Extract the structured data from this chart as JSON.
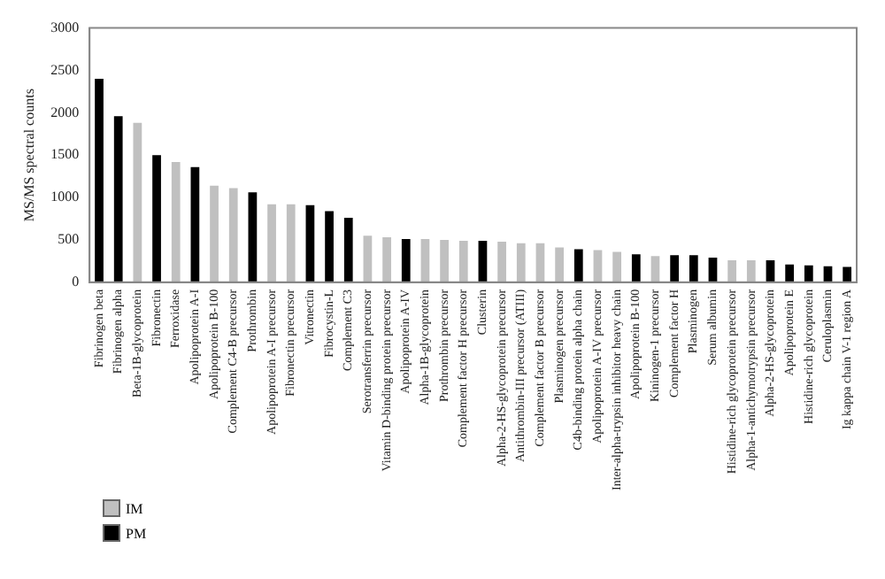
{
  "chart_data": {
    "type": "bar",
    "ylabel": "MS/MS spectral counts",
    "categories": [
      "Fibrinogen beta",
      "Fibrinogen alpha",
      "Beta-1B-glycoprotein",
      "Fibronectin",
      "Ferroxidase",
      "Apolipoprotein A-I",
      "Apolipoprotein B-100",
      "Complement C4-B precursor",
      "Prothrombin",
      "Apolipoprotein A-I precursor",
      "Fibronectin precursor",
      "Vitronectin",
      "Fibrocystin-L",
      "Complement C3",
      "Serotransferrin precursor",
      "Vitamin D-binding protein precursor",
      "Apolipoprotein A-IV",
      "Alpha-1B-glycoprotein",
      "Prothrombin precursor",
      "Complement factor H precursor",
      "Clusterin",
      "Alpha-2-HS-glycoprotein precursor",
      "Antithrombin-III precursor (ATIII)",
      "Complement factor B precursor",
      "Plasminogen precursor",
      "C4b-binding protein alpha chain",
      "Apolipoprotein A-IV precursor",
      "Inter-alpha-trypsin inhibitor heavy chain",
      "Apolipoprotein B-100",
      "Kininogen-1 precursor",
      "Complement factor H",
      "Plasminogen",
      "Serum albumin",
      "Histidine-rich glycoprotein precursor",
      "Alpha-1-antichymotrypsin precursor",
      "Alpha-2-HS-glycoprotein",
      "Apolipoprotein E",
      "Histidine-rich glycoprotein",
      "Ceruloplasmin",
      "Ig kappa chain V-1 region A"
    ],
    "series": [
      {
        "name": "IM",
        "color": "#c0c0c0",
        "values": [
          null,
          null,
          1880,
          null,
          1420,
          null,
          1140,
          1110,
          null,
          920,
          920,
          null,
          null,
          null,
          550,
          530,
          null,
          510,
          500,
          490,
          null,
          480,
          460,
          460,
          410,
          null,
          380,
          360,
          null,
          310,
          null,
          null,
          null,
          260,
          260,
          null,
          null,
          null,
          null,
          null
        ]
      },
      {
        "name": "PM",
        "color": "#000000",
        "values": [
          2400,
          1960,
          null,
          1500,
          null,
          1360,
          null,
          null,
          1060,
          null,
          null,
          910,
          840,
          760,
          null,
          null,
          510,
          null,
          null,
          null,
          490,
          null,
          null,
          null,
          null,
          390,
          null,
          null,
          330,
          null,
          320,
          320,
          290,
          null,
          null,
          260,
          210,
          200,
          190,
          180
        ]
      }
    ],
    "ylim": [
      0,
      3000
    ],
    "yticks": [
      0,
      500,
      1000,
      1500,
      2000,
      2500,
      3000
    ],
    "grid": false,
    "legend": "bottom left"
  }
}
